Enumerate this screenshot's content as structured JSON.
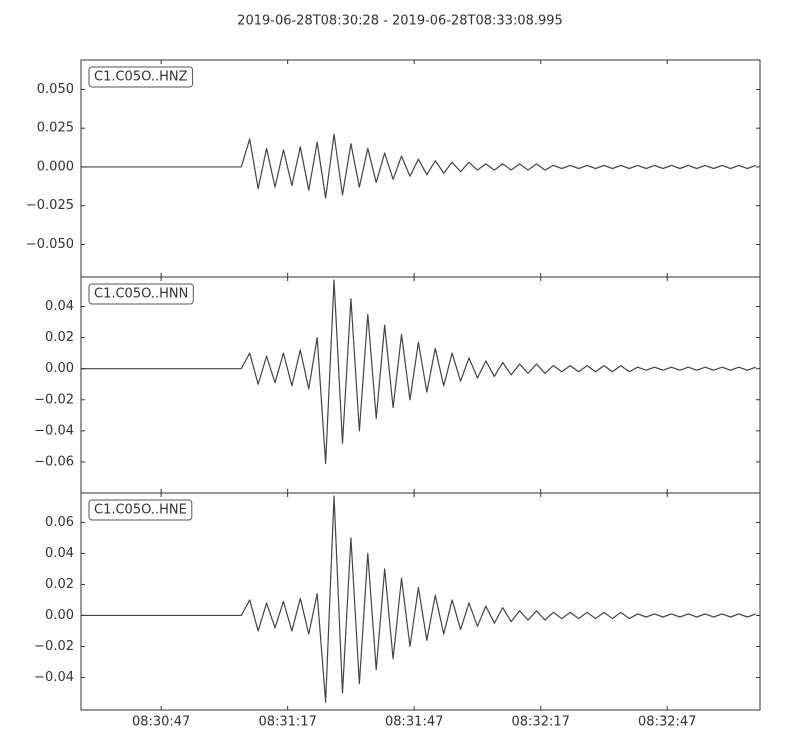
{
  "title": "2019-06-28T08:30:28  -  2019-06-28T08:33:08.995",
  "chart_data": [
    {
      "type": "line",
      "name": "C1.C05O..HNZ",
      "color": "#444444",
      "xlim": [
        "08:30:28",
        "08:33:08.995"
      ],
      "x": [
        "08:30:28",
        "08:30:30",
        "08:30:32",
        "08:30:34",
        "08:30:36",
        "08:30:38",
        "08:30:40",
        "08:30:42",
        "08:30:44",
        "08:30:46",
        "08:30:48",
        "08:30:50",
        "08:30:52",
        "08:30:54",
        "08:30:56",
        "08:30:58",
        "08:31:00",
        "08:31:02",
        "08:31:04",
        "08:31:06",
        "08:31:08",
        "08:31:10",
        "08:31:12",
        "08:31:14",
        "08:31:16",
        "08:31:18",
        "08:31:20",
        "08:31:22",
        "08:31:24",
        "08:31:26",
        "08:31:28",
        "08:31:30",
        "08:31:32",
        "08:31:34",
        "08:31:36",
        "08:31:38",
        "08:31:40",
        "08:31:42",
        "08:31:44",
        "08:31:46",
        "08:31:48",
        "08:31:50",
        "08:31:52",
        "08:31:54",
        "08:31:56",
        "08:31:58",
        "08:32:00",
        "08:32:02",
        "08:32:04",
        "08:32:06",
        "08:32:08",
        "08:32:10",
        "08:32:12",
        "08:32:14",
        "08:32:16",
        "08:32:18",
        "08:32:20",
        "08:32:22",
        "08:32:24",
        "08:32:26",
        "08:32:28",
        "08:32:30",
        "08:32:32",
        "08:32:34",
        "08:32:36",
        "08:32:38",
        "08:32:40",
        "08:32:42",
        "08:32:44",
        "08:32:46",
        "08:32:48",
        "08:32:50",
        "08:32:52",
        "08:32:54",
        "08:32:56",
        "08:32:58",
        "08:33:00",
        "08:33:02",
        "08:33:04",
        "08:33:06",
        "08:33:08"
      ],
      "values": [
        0,
        0,
        0,
        0,
        0,
        0,
        0,
        0,
        0,
        0,
        0,
        0,
        0,
        0,
        0,
        0,
        0,
        0,
        0,
        0,
        0.018,
        -0.014,
        0.012,
        -0.013,
        0.011,
        -0.012,
        0.013,
        -0.015,
        0.016,
        -0.02,
        0.021,
        -0.018,
        0.015,
        -0.013,
        0.012,
        -0.01,
        0.009,
        -0.008,
        0.007,
        -0.006,
        0.005,
        -0.005,
        0.004,
        -0.004,
        0.003,
        -0.003,
        0.003,
        -0.002,
        0.002,
        -0.002,
        0.002,
        -0.002,
        0.002,
        -0.002,
        0.002,
        -0.002,
        0.001,
        -0.001,
        0.001,
        -0.001,
        0.001,
        -0.001,
        0.001,
        -0.001,
        0.001,
        -0.001,
        0.001,
        -0.001,
        0.001,
        -0.001,
        0.001,
        -0.001,
        0.001,
        -0.001,
        0.001,
        -0.001,
        0.001,
        -0.001,
        0.001,
        -0.001,
        0.001
      ],
      "ylim": [
        -0.071,
        0.069
      ],
      "yticks": [
        {
          "value": 0.05,
          "label": "0.050"
        },
        {
          "value": 0.025,
          "label": "0.025"
        },
        {
          "value": 0,
          "label": "0.000"
        },
        {
          "value": -0.025,
          "label": "−0.025"
        },
        {
          "value": -0.05,
          "label": "−0.050"
        }
      ]
    },
    {
      "type": "line",
      "name": "C1.C05O..HNN",
      "color": "#444444",
      "xlim": [
        "08:30:28",
        "08:33:08.995"
      ],
      "x": [
        "08:30:28",
        "08:30:30",
        "08:30:32",
        "08:30:34",
        "08:30:36",
        "08:30:38",
        "08:30:40",
        "08:30:42",
        "08:30:44",
        "08:30:46",
        "08:30:48",
        "08:30:50",
        "08:30:52",
        "08:30:54",
        "08:30:56",
        "08:30:58",
        "08:31:00",
        "08:31:02",
        "08:31:04",
        "08:31:06",
        "08:31:08",
        "08:31:10",
        "08:31:12",
        "08:31:14",
        "08:31:16",
        "08:31:18",
        "08:31:20",
        "08:31:22",
        "08:31:24",
        "08:31:26",
        "08:31:28",
        "08:31:30",
        "08:31:32",
        "08:31:34",
        "08:31:36",
        "08:31:38",
        "08:31:40",
        "08:31:42",
        "08:31:44",
        "08:31:46",
        "08:31:48",
        "08:31:50",
        "08:31:52",
        "08:31:54",
        "08:31:56",
        "08:31:58",
        "08:32:00",
        "08:32:02",
        "08:32:04",
        "08:32:06",
        "08:32:08",
        "08:32:10",
        "08:32:12",
        "08:32:14",
        "08:32:16",
        "08:32:18",
        "08:32:20",
        "08:32:22",
        "08:32:24",
        "08:32:26",
        "08:32:28",
        "08:32:30",
        "08:32:32",
        "08:32:34",
        "08:32:36",
        "08:32:38",
        "08:32:40",
        "08:32:42",
        "08:32:44",
        "08:32:46",
        "08:32:48",
        "08:32:50",
        "08:32:52",
        "08:32:54",
        "08:32:56",
        "08:32:58",
        "08:33:00",
        "08:33:02",
        "08:33:04",
        "08:33:06",
        "08:33:08"
      ],
      "values": [
        0,
        0,
        0,
        0,
        0,
        0,
        0,
        0,
        0,
        0,
        0,
        0,
        0,
        0,
        0,
        0,
        0,
        0,
        0,
        0,
        0.01,
        -0.01,
        0.008,
        -0.009,
        0.01,
        -0.011,
        0.012,
        -0.013,
        0.02,
        -0.061,
        0.057,
        -0.048,
        0.045,
        -0.04,
        0.035,
        -0.032,
        0.028,
        -0.025,
        0.022,
        -0.02,
        0.017,
        -0.015,
        0.013,
        -0.011,
        0.01,
        -0.008,
        0.007,
        -0.006,
        0.005,
        -0.005,
        0.004,
        -0.004,
        0.003,
        -0.003,
        0.003,
        -0.003,
        0.002,
        -0.002,
        0.002,
        -0.002,
        0.002,
        -0.002,
        0.002,
        -0.002,
        0.002,
        -0.002,
        0.001,
        -0.001,
        0.001,
        -0.001,
        0.001,
        -0.001,
        0.001,
        -0.001,
        0.001,
        -0.001,
        0.001,
        -0.001,
        0.001,
        -0.001,
        0.001
      ],
      "ylim": [
        -0.08,
        0.059
      ],
      "yticks": [
        0.04,
        0.02,
        {
          "value": 0,
          "label": "0.00"
        },
        {
          "value": -0.02,
          "label": "−0.02"
        },
        {
          "value": -0.04,
          "label": "−0.04"
        },
        {
          "value": -0.06,
          "label": "−0.06"
        }
      ]
    },
    {
      "type": "line",
      "name": "C1.C05O..HNE",
      "color": "#444444",
      "xlim": [
        "08:30:28",
        "08:33:08.995"
      ],
      "x": [
        "08:30:28",
        "08:30:30",
        "08:30:32",
        "08:30:34",
        "08:30:36",
        "08:30:38",
        "08:30:40",
        "08:30:42",
        "08:30:44",
        "08:30:46",
        "08:30:48",
        "08:30:50",
        "08:30:52",
        "08:30:54",
        "08:30:56",
        "08:30:58",
        "08:31:00",
        "08:31:02",
        "08:31:04",
        "08:31:06",
        "08:31:08",
        "08:31:10",
        "08:31:12",
        "08:31:14",
        "08:31:16",
        "08:31:18",
        "08:31:20",
        "08:31:22",
        "08:31:24",
        "08:31:26",
        "08:31:28",
        "08:31:30",
        "08:31:32",
        "08:31:34",
        "08:31:36",
        "08:31:38",
        "08:31:40",
        "08:31:42",
        "08:31:44",
        "08:31:46",
        "08:31:48",
        "08:31:50",
        "08:31:52",
        "08:31:54",
        "08:31:56",
        "08:31:58",
        "08:32:00",
        "08:32:02",
        "08:32:04",
        "08:32:06",
        "08:32:08",
        "08:32:10",
        "08:32:12",
        "08:32:14",
        "08:32:16",
        "08:32:18",
        "08:32:20",
        "08:32:22",
        "08:32:24",
        "08:32:26",
        "08:32:28",
        "08:32:30",
        "08:32:32",
        "08:32:34",
        "08:32:36",
        "08:32:38",
        "08:32:40",
        "08:32:42",
        "08:32:44",
        "08:32:46",
        "08:32:48",
        "08:32:50",
        "08:32:52",
        "08:32:54",
        "08:32:56",
        "08:32:58",
        "08:33:00",
        "08:33:02",
        "08:33:04",
        "08:33:06",
        "08:33:08"
      ],
      "values": [
        0,
        0,
        0,
        0,
        0,
        0,
        0,
        0,
        0,
        0,
        0,
        0,
        0,
        0,
        0,
        0,
        0,
        0,
        0,
        0,
        0.01,
        -0.01,
        0.008,
        -0.008,
        0.009,
        -0.01,
        0.011,
        -0.012,
        0.014,
        -0.056,
        0.077,
        -0.05,
        0.05,
        -0.044,
        0.04,
        -0.035,
        0.03,
        -0.028,
        0.024,
        -0.02,
        0.018,
        -0.016,
        0.013,
        -0.012,
        0.01,
        -0.009,
        0.008,
        -0.007,
        0.006,
        -0.005,
        0.005,
        -0.004,
        0.003,
        -0.003,
        0.003,
        -0.003,
        0.002,
        -0.002,
        0.002,
        -0.002,
        0.002,
        -0.002,
        0.002,
        -0.002,
        0.002,
        -0.002,
        0.001,
        -0.001,
        0.001,
        -0.001,
        0.001,
        -0.001,
        0.001,
        -0.001,
        0.001,
        -0.001,
        0.001,
        -0.001,
        0.001,
        -0.001,
        0.001
      ],
      "ylim": [
        -0.061,
        0.079
      ],
      "yticks": [
        0.06,
        0.04,
        0.02,
        {
          "value": 0,
          "label": "0.00"
        },
        {
          "value": -0.02,
          "label": "−0.02"
        },
        {
          "value": -0.04,
          "label": "−0.04"
        }
      ],
      "xticks": [
        "08:30:47",
        "08:31:17",
        "08:31:47",
        "08:32:17",
        "08:32:47"
      ]
    }
  ]
}
